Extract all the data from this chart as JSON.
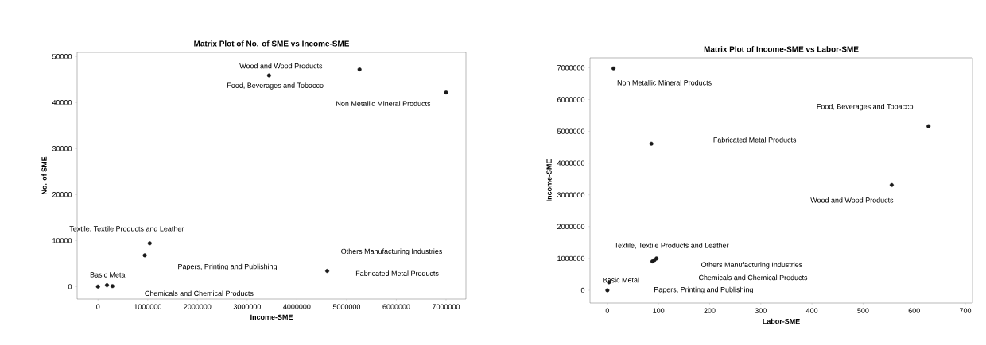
{
  "chart_data": [
    {
      "type": "scatter",
      "title": "Matrix Plot of No. of SME vs Income-SME",
      "xlabel": "Income-SME",
      "ylabel": "No. of SME",
      "color": "#1a1a1a",
      "marker": "circle",
      "x": [
        3440000,
        5260000,
        7000000,
        1040000,
        940000,
        4610000,
        180000,
        0,
        290000
      ],
      "values": [
        45900,
        47200,
        42200,
        9400,
        6800,
        3400,
        300,
        0,
        100
      ],
      "xlim": [
        -420000,
        7400000
      ],
      "ylim": [
        -2700,
        50900
      ],
      "xticks": [
        0,
        1000000,
        2000000,
        3000000,
        4000000,
        5000000,
        6000000,
        7000000
      ],
      "yticks": [
        0,
        10000,
        20000,
        30000,
        40000,
        50000
      ],
      "annotations": [
        "Wood and Wood Products",
        "Food, Beverages and Tobacco",
        "Non Metallic Mineral Products",
        "Textile, Textile Products and Leather",
        "Papers, Printing and Publishing",
        "Fabricated Metal Products",
        "Others Manufacturing Industries",
        "Basic Metal",
        "Chemicals and Chemical Products"
      ]
    },
    {
      "type": "scatter",
      "title": "Matrix Plot of Income-SME vs Labor-SME",
      "xlabel": "Labor-SME",
      "ylabel": "Income-SME",
      "color": "#1a1a1a",
      "marker": "circle",
      "x": [
        12,
        628,
        86,
        556,
        96,
        88,
        92,
        3,
        0
      ],
      "values": [
        6980000,
        5160000,
        4610000,
        3310000,
        1000000,
        910000,
        950000,
        250000,
        0
      ],
      "xlim": [
        -34,
        714
      ],
      "ylim": [
        -400000,
        7310000
      ],
      "xticks": [
        0,
        100,
        200,
        300,
        400,
        500,
        600,
        700
      ],
      "yticks": [
        0,
        1000000,
        2000000,
        3000000,
        4000000,
        5000000,
        6000000,
        7000000
      ],
      "annotations": [
        "Non Metallic Mineral Products",
        "Food, Beverages and Tobacco",
        "Fabricated Metal Products",
        "Wood and Wood Products",
        "Textile, Textile Products and Leather",
        "Others Manufacturing Industries",
        "Chemicals and Chemical Products",
        "Basic Metal",
        "Papers, Printing and Publishing"
      ]
    }
  ]
}
